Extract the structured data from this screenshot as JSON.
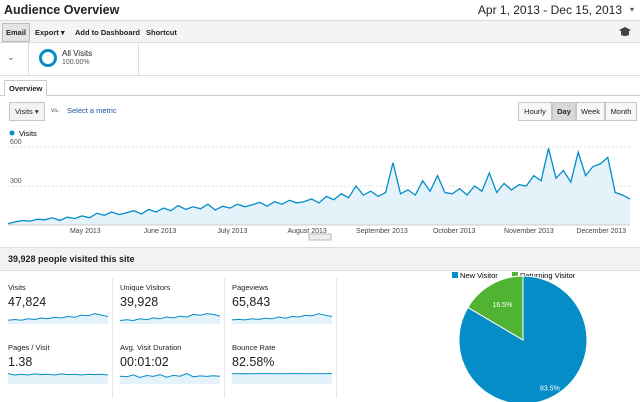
{
  "header": {
    "title": "Audience Overview",
    "date_range": "Apr 1, 2013 - Dec 15, 2013"
  },
  "toolbar": [
    "Email",
    "Export",
    "Add to Dashboard",
    "Shortcut"
  ],
  "segment": {
    "name": "All Visits",
    "percent": "100.00%"
  },
  "tab": "Overview",
  "controls": {
    "metric": "Visits",
    "vs": "vs.",
    "select": "Select a metric",
    "intervals": [
      "Hourly",
      "Day",
      "Week",
      "Month"
    ],
    "active_interval": 1
  },
  "chart_data": [
    {
      "type": "line",
      "series": [
        {
          "name": "Visits",
          "color": "#058dc7",
          "values": [
            10,
            25,
            35,
            30,
            45,
            40,
            55,
            35,
            60,
            50,
            70,
            55,
            90,
            75,
            100,
            80,
            95,
            110,
            85,
            120,
            100,
            130,
            110,
            150,
            120,
            140,
            125,
            160,
            115,
            145,
            130,
            160,
            140,
            155,
            175,
            145,
            180,
            160,
            190,
            170,
            180,
            200,
            170,
            220,
            195,
            240,
            210,
            300,
            230,
            260,
            220,
            250,
            480,
            240,
            270,
            230,
            340,
            260,
            380,
            250,
            240,
            280,
            230,
            300,
            260,
            400,
            250,
            320,
            270,
            310,
            300,
            380,
            340,
            590,
            360,
            420,
            330,
            560,
            380,
            450,
            470,
            520,
            250,
            230,
            200
          ]
        }
      ],
      "ylim": [
        0,
        600
      ],
      "yticks": [
        300,
        600
      ],
      "grid": true,
      "x_labels": [
        "May 2013",
        "June 2013",
        "July 2013",
        "August 2013",
        "September 2013",
        "October 2013",
        "November 2013",
        "December 2013"
      ]
    },
    {
      "type": "pie",
      "categories": [
        "New Visitor",
        "Returning Visitor"
      ],
      "values": [
        83.5,
        16.5
      ],
      "value_labels": [
        "83.5%",
        "16.5%"
      ],
      "colors": [
        "#058dc7",
        "#50b432"
      ]
    }
  ],
  "summary": "39,928 people visited this site",
  "metrics": [
    {
      "label": "Visits",
      "value": "47,824",
      "sparkline": [
        5,
        6,
        5,
        7,
        6,
        8,
        7,
        9,
        8,
        10,
        9,
        12,
        11,
        14,
        12,
        10
      ]
    },
    {
      "label": "Unique Visitors",
      "value": "39,928",
      "sparkline": [
        4,
        5,
        4,
        6,
        5,
        7,
        6,
        8,
        7,
        9,
        8,
        11,
        10,
        12,
        11,
        9
      ]
    },
    {
      "label": "Pageviews",
      "value": "65,843",
      "sparkline": [
        7,
        8,
        7,
        9,
        8,
        10,
        9,
        12,
        10,
        13,
        12,
        15,
        14,
        18,
        15,
        13
      ]
    },
    {
      "label": "Pages / Visit",
      "value": "1.38",
      "sparkline": [
        1.5,
        1.3,
        1.4,
        1.3,
        1.45,
        1.35,
        1.4,
        1.3,
        1.45,
        1.35,
        1.4,
        1.3,
        1.4,
        1.35,
        1.4,
        1.3
      ]
    },
    {
      "label": "Avg. Visit Duration",
      "value": "00:01:02",
      "sparkline": [
        60,
        55,
        70,
        50,
        65,
        58,
        72,
        52,
        66,
        60,
        80,
        55,
        62,
        58,
        64,
        60
      ]
    },
    {
      "label": "Bounce Rate",
      "value": "82.58%",
      "sparkline": [
        83,
        82,
        83,
        82,
        83,
        82.5,
        83,
        82,
        83,
        82.5,
        83,
        82,
        82.5,
        83,
        82.5,
        83
      ]
    }
  ]
}
